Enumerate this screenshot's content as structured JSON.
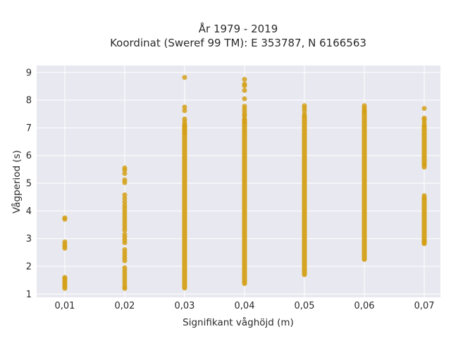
{
  "chart_data": {
    "type": "scatter",
    "title_line1": "År 1979 - 2019",
    "title_line2": "Koordinat (Sweref 99 TM): E 353787, N 6166563",
    "xlabel": "Signifikant våghöjd (m)",
    "ylabel": "Vågperiod (s)",
    "x_ticks": [
      "0,01",
      "0,02",
      "0,03",
      "0,04",
      "0,05",
      "0,06",
      "0,07"
    ],
    "x_tick_values": [
      0.01,
      0.02,
      0.03,
      0.04,
      0.05,
      0.06,
      0.07
    ],
    "y_ticks": [
      "1",
      "2",
      "3",
      "4",
      "5",
      "6",
      "7",
      "8",
      "9"
    ],
    "y_tick_values": [
      1,
      2,
      3,
      4,
      5,
      6,
      7,
      8,
      9
    ],
    "xlim": [
      0.0053,
      0.0727
    ],
    "ylim": [
      0.88,
      9.25
    ],
    "grid": true,
    "marker_color": "#d4a017",
    "background_color": "#e8e8f0",
    "series": [
      {
        "points": [
          [
            0.01,
            3.75
          ],
          [
            0.01,
            3.7
          ],
          [
            0.01,
            2.88
          ],
          [
            0.01,
            2.8
          ],
          [
            0.01,
            2.72
          ],
          [
            0.01,
            2.65
          ],
          [
            0.01,
            1.6
          ],
          [
            0.01,
            1.55
          ],
          [
            0.01,
            1.5
          ],
          [
            0.01,
            1.45
          ],
          [
            0.01,
            1.4
          ],
          [
            0.01,
            1.35
          ],
          [
            0.01,
            1.3
          ],
          [
            0.01,
            1.25
          ],
          [
            0.01,
            1.2
          ],
          [
            0.02,
            5.55
          ],
          [
            0.02,
            5.48
          ],
          [
            0.02,
            5.35
          ],
          [
            0.02,
            5.12
          ],
          [
            0.02,
            5.02
          ],
          [
            0.02,
            4.58
          ],
          [
            0.02,
            4.45
          ],
          [
            0.02,
            4.32
          ],
          [
            0.02,
            4.2
          ],
          [
            0.02,
            4.1
          ],
          [
            0.02,
            4.0
          ],
          [
            0.02,
            3.9
          ],
          [
            0.02,
            3.8
          ],
          [
            0.02,
            3.7
          ],
          [
            0.02,
            3.6
          ],
          [
            0.02,
            3.5
          ],
          [
            0.02,
            3.4
          ],
          [
            0.02,
            3.3
          ],
          [
            0.02,
            3.15
          ],
          [
            0.02,
            3.05
          ],
          [
            0.02,
            2.95
          ],
          [
            0.02,
            2.85
          ],
          [
            0.02,
            2.6
          ],
          [
            0.02,
            2.5
          ],
          [
            0.02,
            2.4
          ],
          [
            0.02,
            2.3
          ],
          [
            0.02,
            2.2
          ],
          [
            0.02,
            1.95
          ],
          [
            0.02,
            1.85
          ],
          [
            0.02,
            1.75
          ],
          [
            0.02,
            1.65
          ],
          [
            0.02,
            1.55
          ],
          [
            0.02,
            1.45
          ],
          [
            0.02,
            1.35
          ],
          [
            0.02,
            1.25
          ],
          [
            0.02,
            1.2
          ],
          [
            0.03,
            8.82
          ],
          [
            0.03,
            7.75
          ],
          [
            0.03,
            7.62
          ],
          [
            0.03,
            7.32
          ],
          [
            0.03,
            7.22
          ],
          [
            0.03,
            7.12
          ],
          [
            0.03,
            7.02
          ],
          [
            0.03,
            6.92
          ],
          [
            0.03,
            6.82
          ],
          [
            0.04,
            8.75
          ],
          [
            0.04,
            8.58
          ],
          [
            0.04,
            8.52
          ],
          [
            0.04,
            8.35
          ],
          [
            0.04,
            8.05
          ],
          [
            0.04,
            7.78
          ],
          [
            0.04,
            7.68
          ],
          [
            0.04,
            7.58
          ],
          [
            0.04,
            7.48
          ],
          [
            0.04,
            7.42
          ],
          [
            0.04,
            7.3
          ],
          [
            0.04,
            7.2
          ],
          [
            0.05,
            7.8
          ],
          [
            0.05,
            7.72
          ],
          [
            0.05,
            7.62
          ],
          [
            0.05,
            7.5
          ],
          [
            0.05,
            7.42
          ],
          [
            0.06,
            7.8
          ],
          [
            0.06,
            7.72
          ],
          [
            0.06,
            7.65
          ],
          [
            0.06,
            7.58
          ],
          [
            0.07,
            7.7
          ],
          [
            0.07,
            7.35
          ],
          [
            0.07,
            7.3
          ],
          [
            0.07,
            7.2
          ],
          [
            0.07,
            7.1
          ],
          [
            0.07,
            5.65
          ],
          [
            0.07,
            5.58
          ],
          [
            0.07,
            4.55
          ],
          [
            0.07,
            4.48
          ],
          [
            0.07,
            2.9
          ],
          [
            0.07,
            2.85
          ]
        ],
        "dense_ranges": [
          {
            "x": 0.03,
            "y_min": 1.22,
            "y_max": 7.1
          },
          {
            "x": 0.04,
            "y_min": 1.38,
            "y_max": 7.3
          },
          {
            "x": 0.05,
            "y_min": 1.7,
            "y_max": 7.4
          },
          {
            "x": 0.06,
            "y_min": 2.25,
            "y_max": 7.6
          },
          {
            "x": 0.07,
            "y_min": 5.7,
            "y_max": 7.05
          },
          {
            "x": 0.07,
            "y_min": 2.82,
            "y_max": 4.45
          }
        ]
      }
    ]
  }
}
